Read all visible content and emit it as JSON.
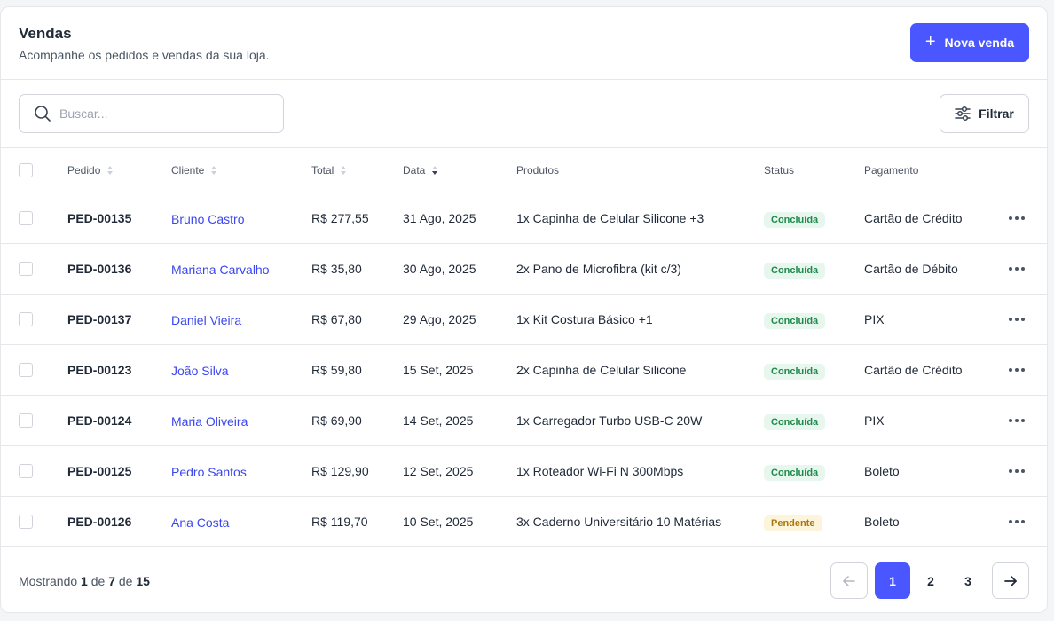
{
  "header": {
    "title": "Vendas",
    "subtitle": "Acompanhe os pedidos e vendas da sua loja.",
    "new_sale_label": "Nova venda"
  },
  "search": {
    "placeholder": "Buscar..."
  },
  "filter_label": "Filtrar",
  "columns": {
    "order": "Pedido",
    "client": "Cliente",
    "total": "Total",
    "date": "Data",
    "products": "Produtos",
    "status": "Status",
    "payment": "Pagamento"
  },
  "rows": [
    {
      "order": "PED-00135",
      "client": "Bruno Castro",
      "total": "R$ 277,55",
      "date": "31 Ago, 2025",
      "products": "1x Capinha de Celular Silicone +3",
      "status": "Concluída",
      "payment": "Cartão de Crédito"
    },
    {
      "order": "PED-00136",
      "client": "Mariana Carvalho",
      "total": "R$ 35,80",
      "date": "30 Ago, 2025",
      "products": "2x Pano de Microfibra (kit c/3)",
      "status": "Concluída",
      "payment": "Cartão de Débito"
    },
    {
      "order": "PED-00137",
      "client": "Daniel Vieira",
      "total": "R$ 67,80",
      "date": "29 Ago, 2025",
      "products": "1x Kit Costura Básico +1",
      "status": "Concluída",
      "payment": "PIX"
    },
    {
      "order": "PED-00123",
      "client": "João Silva",
      "total": "R$ 59,80",
      "date": "15 Set, 2025",
      "products": "2x Capinha de Celular Silicone",
      "status": "Concluída",
      "payment": "Cartão de Crédito"
    },
    {
      "order": "PED-00124",
      "client": "Maria Oliveira",
      "total": "R$ 69,90",
      "date": "14 Set, 2025",
      "products": "1x Carregador Turbo USB-C 20W",
      "status": "Concluída",
      "payment": "PIX"
    },
    {
      "order": "PED-00125",
      "client": "Pedro Santos",
      "total": "R$ 129,90",
      "date": "12 Set, 2025",
      "products": "1x Roteador Wi-Fi N 300Mbps",
      "status": "Concluída",
      "payment": "Boleto"
    },
    {
      "order": "PED-00126",
      "client": "Ana Costa",
      "total": "R$ 119,70",
      "date": "10 Set, 2025",
      "products": "3x Caderno Universitário 10 Matérias",
      "status": "Pendente",
      "payment": "Boleto"
    }
  ],
  "footer": {
    "showing_prefix": "Mostrando",
    "showing_from": "1",
    "showing_mid": "de",
    "showing_to": "7",
    "showing_of": "de",
    "showing_total": "15",
    "pages": [
      "1",
      "2",
      "3"
    ]
  },
  "colors": {
    "accent": "#4a56ff",
    "client_link": "#3b47f0",
    "status_done_bg": "#e8f7ee",
    "status_done_text": "#1f8a4c",
    "status_pending_bg": "#fdf4dc",
    "status_pending_text": "#a8760a"
  },
  "icons": [
    "plus-icon",
    "search-icon",
    "sliders-icon",
    "sort-icon",
    "more-horizontal-icon",
    "arrow-left-icon",
    "arrow-right-icon"
  ]
}
